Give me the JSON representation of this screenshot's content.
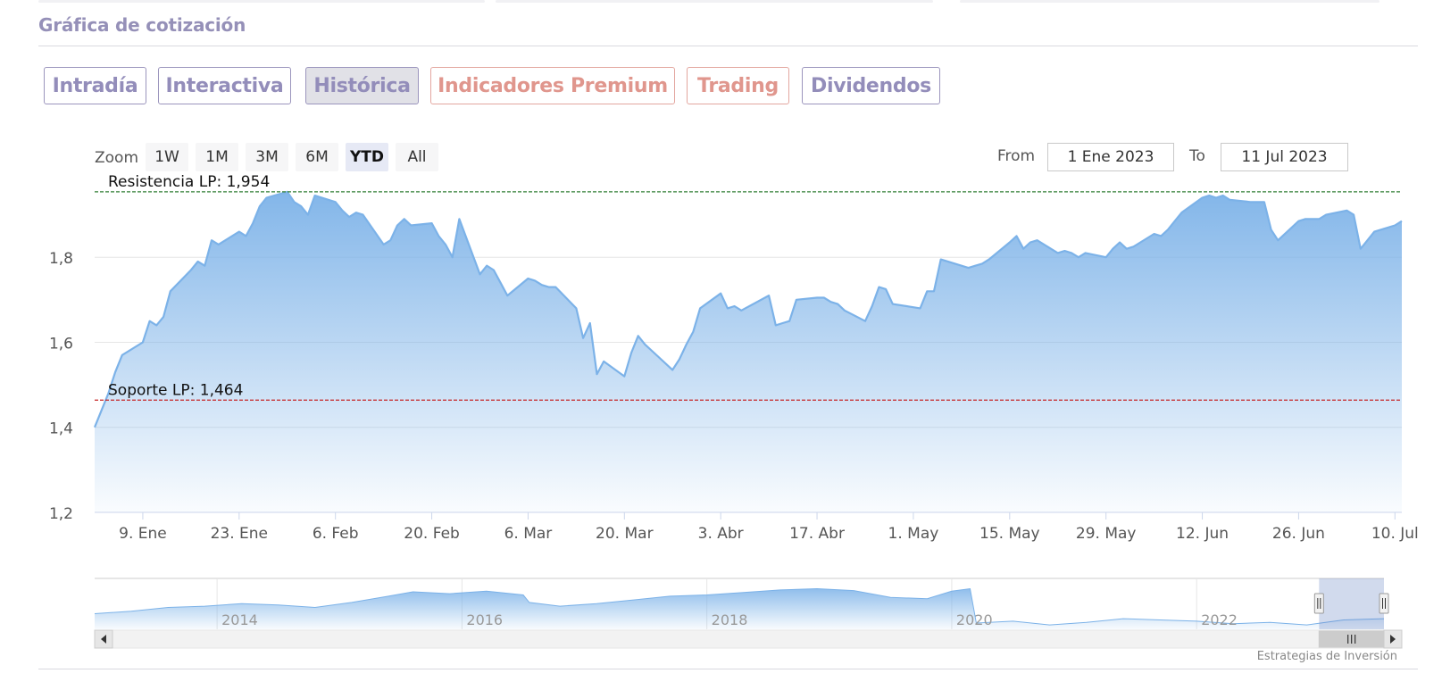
{
  "section_title": "Gráfica de cotización",
  "tabs": [
    {
      "label": "Intradía",
      "active": false,
      "premium": false
    },
    {
      "label": "Interactiva",
      "active": false,
      "premium": false
    },
    {
      "label": "Histórica",
      "active": true,
      "premium": false
    },
    {
      "label": "Indicadores Premium",
      "active": false,
      "premium": true
    },
    {
      "label": "Trading",
      "active": false,
      "premium": true
    },
    {
      "label": "Dividendos",
      "active": false,
      "premium": false
    }
  ],
  "zoom": {
    "label": "Zoom",
    "buttons": [
      "1W",
      "1M",
      "3M",
      "6M",
      "YTD",
      "All"
    ],
    "selected": "YTD"
  },
  "range": {
    "from_label": "From",
    "from_value": "1 Ene 2023",
    "to_label": "To",
    "to_value": "11 Jul 2023"
  },
  "credits": "Estrategias de Inversión",
  "colors": {
    "line": "#7cb2e8",
    "fill_top": "#7cb2e8",
    "resistance": "#2e7d32",
    "support": "#c62828",
    "tab_text": "#938dba",
    "premium_text": "#e0968d"
  },
  "chart_data": {
    "type": "area",
    "ylim": [
      1.2,
      1.96
    ],
    "y_ticks": [
      {
        "value": 1.2,
        "label": "1,2"
      },
      {
        "value": 1.4,
        "label": "1,4"
      },
      {
        "value": 1.6,
        "label": "1,6"
      },
      {
        "value": 1.8,
        "label": "1,8"
      }
    ],
    "xlim": [
      "2023-01-02",
      "2023-07-11"
    ],
    "x_ticks": [
      {
        "date": "2023-01-09",
        "label": "9. Ene"
      },
      {
        "date": "2023-01-23",
        "label": "23. Ene"
      },
      {
        "date": "2023-02-06",
        "label": "6. Feb"
      },
      {
        "date": "2023-02-20",
        "label": "20. Feb"
      },
      {
        "date": "2023-03-06",
        "label": "6. Mar"
      },
      {
        "date": "2023-03-20",
        "label": "20. Mar"
      },
      {
        "date": "2023-04-03",
        "label": "3. Abr"
      },
      {
        "date": "2023-04-17",
        "label": "17. Abr"
      },
      {
        "date": "2023-05-01",
        "label": "1. May"
      },
      {
        "date": "2023-05-15",
        "label": "15. May"
      },
      {
        "date": "2023-05-29",
        "label": "29. May"
      },
      {
        "date": "2023-06-12",
        "label": "12. Jun"
      },
      {
        "date": "2023-06-26",
        "label": "26. Jun"
      },
      {
        "date": "2023-07-10",
        "label": "10. Jul"
      }
    ],
    "plot_lines": [
      {
        "label": "Resistencia LP: 1,954",
        "value": 1.954,
        "color": "#2e7d32"
      },
      {
        "label": "Soporte LP: 1,464",
        "value": 1.464,
        "color": "#c62828"
      }
    ],
    "series": [
      {
        "points": [
          [
            "2023-01-02",
            1.4
          ],
          [
            "2023-01-03",
            1.44
          ],
          [
            "2023-01-04",
            1.48
          ],
          [
            "2023-01-05",
            1.53
          ],
          [
            "2023-01-06",
            1.57
          ],
          [
            "2023-01-09",
            1.6
          ],
          [
            "2023-01-10",
            1.65
          ],
          [
            "2023-01-11",
            1.64
          ],
          [
            "2023-01-12",
            1.66
          ],
          [
            "2023-01-13",
            1.72
          ],
          [
            "2023-01-16",
            1.77
          ],
          [
            "2023-01-17",
            1.79
          ],
          [
            "2023-01-18",
            1.78
          ],
          [
            "2023-01-19",
            1.84
          ],
          [
            "2023-01-20",
            1.83
          ],
          [
            "2023-01-23",
            1.86
          ],
          [
            "2023-01-24",
            1.85
          ],
          [
            "2023-01-25",
            1.88
          ],
          [
            "2023-01-26",
            1.92
          ],
          [
            "2023-01-27",
            1.94
          ],
          [
            "2023-01-30",
            1.954
          ],
          [
            "2023-01-31",
            1.93
          ],
          [
            "2023-02-01",
            1.92
          ],
          [
            "2023-02-02",
            1.9
          ],
          [
            "2023-02-03",
            1.945
          ],
          [
            "2023-02-06",
            1.93
          ],
          [
            "2023-02-07",
            1.91
          ],
          [
            "2023-02-08",
            1.895
          ],
          [
            "2023-02-09",
            1.905
          ],
          [
            "2023-02-10",
            1.9
          ],
          [
            "2023-02-13",
            1.83
          ],
          [
            "2023-02-14",
            1.84
          ],
          [
            "2023-02-15",
            1.875
          ],
          [
            "2023-02-16",
            1.89
          ],
          [
            "2023-02-17",
            1.875
          ],
          [
            "2023-02-20",
            1.88
          ],
          [
            "2023-02-21",
            1.85
          ],
          [
            "2023-02-22",
            1.83
          ],
          [
            "2023-02-23",
            1.8
          ],
          [
            "2023-02-24",
            1.89
          ],
          [
            "2023-02-27",
            1.76
          ],
          [
            "2023-02-28",
            1.78
          ],
          [
            "2023-03-01",
            1.77
          ],
          [
            "2023-03-02",
            1.74
          ],
          [
            "2023-03-03",
            1.71
          ],
          [
            "2023-03-06",
            1.75
          ],
          [
            "2023-03-07",
            1.745
          ],
          [
            "2023-03-08",
            1.735
          ],
          [
            "2023-03-09",
            1.73
          ],
          [
            "2023-03-10",
            1.73
          ],
          [
            "2023-03-13",
            1.68
          ],
          [
            "2023-03-14",
            1.61
          ],
          [
            "2023-03-15",
            1.645
          ],
          [
            "2023-03-16",
            1.525
          ],
          [
            "2023-03-17",
            1.555
          ],
          [
            "2023-03-20",
            1.52
          ],
          [
            "2023-03-21",
            1.575
          ],
          [
            "2023-03-22",
            1.615
          ],
          [
            "2023-03-23",
            1.595
          ],
          [
            "2023-03-24",
            1.58
          ],
          [
            "2023-03-27",
            1.535
          ],
          [
            "2023-03-28",
            1.56
          ],
          [
            "2023-03-29",
            1.595
          ],
          [
            "2023-03-30",
            1.625
          ],
          [
            "2023-03-31",
            1.68
          ],
          [
            "2023-04-03",
            1.715
          ],
          [
            "2023-04-04",
            1.68
          ],
          [
            "2023-04-05",
            1.685
          ],
          [
            "2023-04-06",
            1.675
          ],
          [
            "2023-04-10",
            1.71
          ],
          [
            "2023-04-11",
            1.64
          ],
          [
            "2023-04-12",
            1.645
          ],
          [
            "2023-04-13",
            1.65
          ],
          [
            "2023-04-14",
            1.7
          ],
          [
            "2023-04-17",
            1.705
          ],
          [
            "2023-04-18",
            1.705
          ],
          [
            "2023-04-19",
            1.695
          ],
          [
            "2023-04-20",
            1.69
          ],
          [
            "2023-04-21",
            1.675
          ],
          [
            "2023-04-24",
            1.65
          ],
          [
            "2023-04-25",
            1.685
          ],
          [
            "2023-04-26",
            1.73
          ],
          [
            "2023-04-27",
            1.725
          ],
          [
            "2023-04-28",
            1.69
          ],
          [
            "2023-05-02",
            1.68
          ],
          [
            "2023-05-03",
            1.72
          ],
          [
            "2023-05-04",
            1.72
          ],
          [
            "2023-05-05",
            1.795
          ],
          [
            "2023-05-08",
            1.78
          ],
          [
            "2023-05-09",
            1.775
          ],
          [
            "2023-05-10",
            1.78
          ],
          [
            "2023-05-11",
            1.785
          ],
          [
            "2023-05-12",
            1.795
          ],
          [
            "2023-05-15",
            1.835
          ],
          [
            "2023-05-16",
            1.85
          ],
          [
            "2023-05-17",
            1.82
          ],
          [
            "2023-05-18",
            1.835
          ],
          [
            "2023-05-19",
            1.84
          ],
          [
            "2023-05-22",
            1.81
          ],
          [
            "2023-05-23",
            1.815
          ],
          [
            "2023-05-24",
            1.81
          ],
          [
            "2023-05-25",
            1.8
          ],
          [
            "2023-05-26",
            1.81
          ],
          [
            "2023-05-29",
            1.8
          ],
          [
            "2023-05-30",
            1.82
          ],
          [
            "2023-05-31",
            1.835
          ],
          [
            "2023-06-01",
            1.82
          ],
          [
            "2023-06-02",
            1.825
          ],
          [
            "2023-06-05",
            1.855
          ],
          [
            "2023-06-06",
            1.85
          ],
          [
            "2023-06-07",
            1.865
          ],
          [
            "2023-06-08",
            1.885
          ],
          [
            "2023-06-09",
            1.905
          ],
          [
            "2023-06-12",
            1.94
          ],
          [
            "2023-06-13",
            1.945
          ],
          [
            "2023-06-14",
            1.94
          ],
          [
            "2023-06-15",
            1.945
          ],
          [
            "2023-06-16",
            1.935
          ],
          [
            "2023-06-19",
            1.93
          ],
          [
            "2023-06-20",
            1.93
          ],
          [
            "2023-06-21",
            1.93
          ],
          [
            "2023-06-22",
            1.865
          ],
          [
            "2023-06-23",
            1.84
          ],
          [
            "2023-06-26",
            1.885
          ],
          [
            "2023-06-27",
            1.89
          ],
          [
            "2023-06-28",
            1.89
          ],
          [
            "2023-06-29",
            1.89
          ],
          [
            "2023-06-30",
            1.9
          ],
          [
            "2023-07-03",
            1.91
          ],
          [
            "2023-07-04",
            1.9
          ],
          [
            "2023-07-05",
            1.82
          ],
          [
            "2023-07-06",
            1.84
          ],
          [
            "2023-07-07",
            1.86
          ],
          [
            "2023-07-10",
            1.875
          ],
          [
            "2023-07-11",
            1.885
          ]
        ]
      }
    ],
    "navigator": {
      "x_labels": [
        "2014",
        "2016",
        "2018",
        "2020",
        "2022"
      ],
      "points": [
        [
          2013.0,
          1.1
        ],
        [
          2013.3,
          1.14
        ],
        [
          2013.6,
          1.2
        ],
        [
          2013.9,
          1.22
        ],
        [
          2014.2,
          1.26
        ],
        [
          2014.5,
          1.24
        ],
        [
          2014.8,
          1.2
        ],
        [
          2015.1,
          1.28
        ],
        [
          2015.4,
          1.38
        ],
        [
          2015.6,
          1.45
        ],
        [
          2015.9,
          1.42
        ],
        [
          2016.2,
          1.46
        ],
        [
          2016.5,
          1.4
        ],
        [
          2016.55,
          1.28
        ],
        [
          2016.8,
          1.22
        ],
        [
          2017.1,
          1.26
        ],
        [
          2017.4,
          1.32
        ],
        [
          2017.7,
          1.38
        ],
        [
          2018.0,
          1.4
        ],
        [
          2018.3,
          1.44
        ],
        [
          2018.6,
          1.48
        ],
        [
          2018.9,
          1.5
        ],
        [
          2019.2,
          1.47
        ],
        [
          2019.5,
          1.36
        ],
        [
          2019.8,
          1.34
        ],
        [
          2020.0,
          1.46
        ],
        [
          2020.15,
          1.5
        ],
        [
          2020.2,
          0.95
        ],
        [
          2020.5,
          0.98
        ],
        [
          2020.8,
          0.92
        ],
        [
          2021.1,
          0.96
        ],
        [
          2021.4,
          1.02
        ],
        [
          2021.7,
          1.0
        ],
        [
          2022.0,
          0.98
        ],
        [
          2022.3,
          0.94
        ],
        [
          2022.6,
          0.96
        ],
        [
          2022.9,
          0.92
        ],
        [
          2023.2,
          1.0
        ],
        [
          2023.53,
          1.02
        ]
      ],
      "range_start": 2023.0,
      "range_end": 2023.53
    }
  }
}
